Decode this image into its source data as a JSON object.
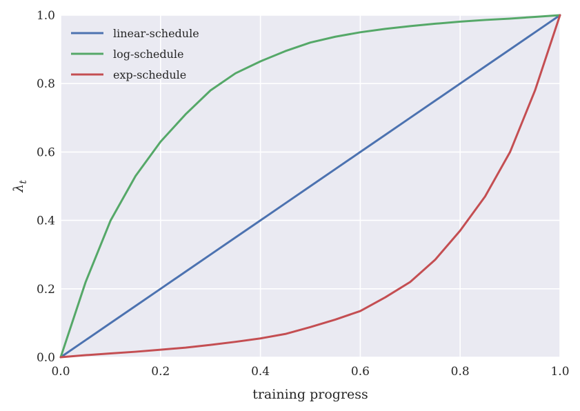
{
  "chart_data": {
    "type": "line",
    "xlabel": "training progress",
    "ylabel": "λ",
    "ylabel_subscript": "t",
    "xlim": [
      0.0,
      1.0
    ],
    "ylim": [
      0.0,
      1.0
    ],
    "xticks": [
      "0.0",
      "0.2",
      "0.4",
      "0.6",
      "0.8",
      "1.0"
    ],
    "yticks": [
      "0.0",
      "0.2",
      "0.4",
      "0.6",
      "0.8",
      "1.0"
    ],
    "grid": true,
    "legend_position": "top-left",
    "background_color": "#EAEAF2",
    "x": [
      0.0,
      0.05,
      0.1,
      0.15,
      0.2,
      0.25,
      0.3,
      0.35,
      0.4,
      0.45,
      0.5,
      0.55,
      0.6,
      0.65,
      0.7,
      0.75,
      0.8,
      0.85,
      0.9,
      0.95,
      1.0
    ],
    "series": [
      {
        "name": "linear-schedule",
        "color": "#4C72B0",
        "values": [
          0.0,
          0.05,
          0.1,
          0.15,
          0.2,
          0.25,
          0.3,
          0.35,
          0.4,
          0.45,
          0.5,
          0.55,
          0.6,
          0.65,
          0.7,
          0.75,
          0.8,
          0.85,
          0.9,
          0.95,
          1.0
        ]
      },
      {
        "name": "log-schedule",
        "color": "#55A868",
        "values": [
          0.0,
          0.22,
          0.4,
          0.53,
          0.63,
          0.71,
          0.78,
          0.83,
          0.865,
          0.895,
          0.92,
          0.937,
          0.95,
          0.96,
          0.968,
          0.975,
          0.981,
          0.986,
          0.99,
          0.995,
          1.0
        ]
      },
      {
        "name": "exp-schedule",
        "color": "#C44E52",
        "values": [
          0.0,
          0.006,
          0.011,
          0.016,
          0.022,
          0.028,
          0.036,
          0.045,
          0.055,
          0.068,
          0.088,
          0.11,
          0.135,
          0.175,
          0.22,
          0.285,
          0.37,
          0.47,
          0.6,
          0.78,
          1.0
        ]
      }
    ]
  }
}
